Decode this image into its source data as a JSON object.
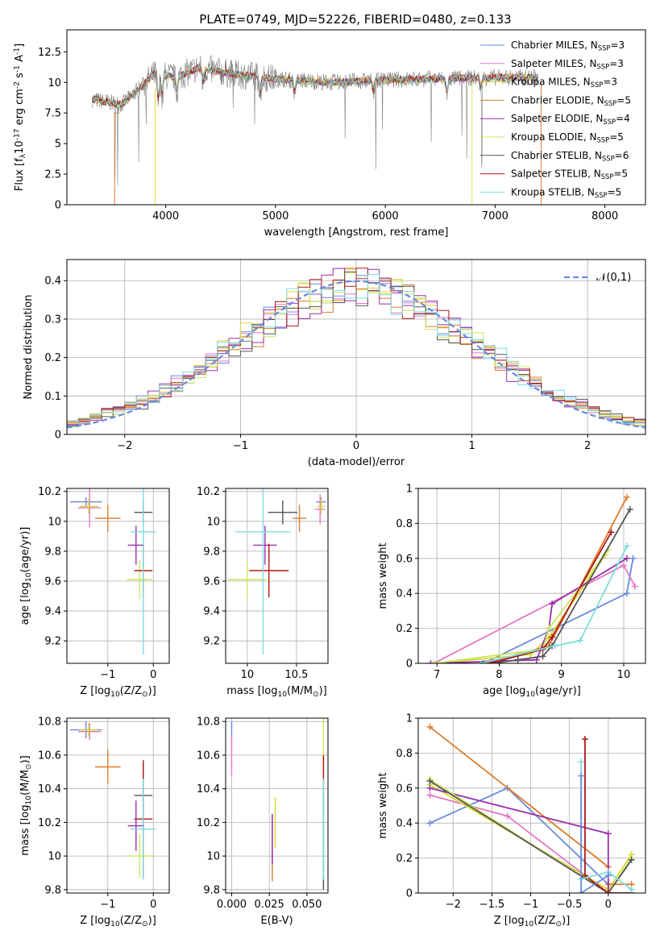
{
  "title": "PLATE=0749, MJD=52226, FIBERID=0480, z=0.133",
  "colors": [
    "#6a8bdc",
    "#e377c2",
    "#d8d830",
    "#e07b2a",
    "#9b2fae",
    "#c8e860",
    "#555555",
    "#b01818",
    "#7fdcdc"
  ],
  "chart_data": [
    {
      "id": "spectrum",
      "type": "line",
      "title": "PLATE=0749, MJD=52226, FIBERID=0480, z=0.133",
      "xlabel": "wavelength [Angstrom, rest frame]",
      "ylabel": "Flux [f$_\\lambda$10$^{-17}$ erg cm$^{-2}$ s$^{-1}$ A$^{-1}$]",
      "xlim": [
        3100,
        8370
      ],
      "ylim": [
        0,
        14.3
      ],
      "xticks": [
        4000,
        5000,
        6000,
        7000,
        8000
      ],
      "yticks": [
        0.0,
        2.5,
        5.0,
        7.5,
        10.0,
        12.5
      ],
      "grid": false,
      "legend_position": "top-right",
      "data_range": [
        3330,
        7390
      ],
      "series": [
        {
          "name": "Chabrier MILES, N$_{SSP}$=3"
        },
        {
          "name": "Salpeter MILES, N$_{SSP}$=3"
        },
        {
          "name": "Kroupa MILES, N$_{SSP}$=3"
        },
        {
          "name": "Chabrier ELODIE, N$_{SSP}$=5"
        },
        {
          "name": "Salpeter ELODIE, N$_{SSP}$=4"
        },
        {
          "name": "Kroupa ELODIE, N$_{SSP}$=5"
        },
        {
          "name": "Chabrier STELIB, N$_{SSP}$=6"
        },
        {
          "name": "Salpeter STELIB, N$_{SSP}$=5"
        },
        {
          "name": "Kroupa STELIB, N$_{SSP}$=5"
        }
      ],
      "continuum": {
        "x": [
          3330,
          3600,
          3700,
          3900,
          4100,
          4300,
          4600,
          5000,
          5500,
          6000,
          6500,
          7000,
          7400
        ],
        "y": [
          8.6,
          8.2,
          9.0,
          10.7,
          10.4,
          11.2,
          10.7,
          10.3,
          10.0,
          10.2,
          10.3,
          10.4,
          10.4
        ]
      }
    },
    {
      "id": "residual-histogram",
      "type": "line",
      "xlabel": "(data-model)/error",
      "ylabel": "Normed distribution",
      "xlim": [
        -2.5,
        2.5
      ],
      "ylim": [
        0,
        0.455
      ],
      "xticks": [
        -2,
        -1,
        0,
        1,
        2
      ],
      "yticks": [
        0.0,
        0.1,
        0.2,
        0.3,
        0.4
      ],
      "grid": true,
      "legend_position": "top-right",
      "legend": "$\\mathcal{N}(0,1)$",
      "gaussian": {
        "mu": 0,
        "sigma": 1
      },
      "bin_width": 0.1,
      "base": [
        0.025,
        0.035,
        0.045,
        0.055,
        0.065,
        0.075,
        0.085,
        0.1,
        0.115,
        0.135,
        0.15,
        0.17,
        0.19,
        0.21,
        0.23,
        0.25,
        0.27,
        0.29,
        0.31,
        0.33,
        0.35,
        0.36,
        0.37,
        0.38,
        0.39,
        0.39,
        0.38,
        0.37,
        0.36,
        0.35,
        0.33,
        0.31,
        0.29,
        0.27,
        0.25,
        0.23,
        0.21,
        0.19,
        0.17,
        0.15,
        0.135,
        0.115,
        0.1,
        0.085,
        0.075,
        0.065,
        0.055,
        0.045,
        0.035,
        0.03
      ]
    },
    {
      "id": "age-vs-metallicity",
      "type": "scatter",
      "xlabel": "Z [log$_{10}$(Z/Z$_\\odot$)]",
      "ylabel": "age  [log$_{10}$(age/yr)]",
      "xlim": [
        -1.9,
        0.35
      ],
      "ylim": [
        9.05,
        10.22
      ],
      "xticks": [
        -1,
        0
      ],
      "yticks": [
        9.2,
        9.4,
        9.6,
        9.8,
        10.0,
        10.2
      ],
      "grid": true,
      "points": [
        {
          "x": -1.48,
          "y": 10.13,
          "xerr": 0.35,
          "yerr": 0.03
        },
        {
          "x": -1.4,
          "y": 10.09,
          "xerr": 0.25,
          "yerr": 0.13
        },
        {
          "x": -1.42,
          "y": 10.1,
          "xerr": 0.2,
          "yerr": 0.05
        },
        {
          "x": -1.0,
          "y": 10.02,
          "xerr": 0.28,
          "yerr": 0.09
        },
        {
          "x": -0.38,
          "y": 9.84,
          "xerr": 0.18,
          "yerr": 0.13
        },
        {
          "x": -0.3,
          "y": 9.61,
          "xerr": 0.28,
          "yerr": 0.13
        },
        {
          "x": -0.22,
          "y": 10.06,
          "xerr": 0.2,
          "yerr": 0.08
        },
        {
          "x": -0.22,
          "y": 9.67,
          "xerr": 0.2,
          "yerr": 0.18
        },
        {
          "x": -0.22,
          "y": 9.93,
          "xerr": 0.28,
          "yerr": 0.82
        }
      ]
    },
    {
      "id": "age-vs-mass",
      "type": "scatter",
      "xlabel": "mass [log$_{10}$(M/M$_\\odot$)]",
      "ylabel": "",
      "xlim": [
        9.78,
        10.82
      ],
      "ylim": [
        9.05,
        10.22
      ],
      "xticks": [
        10.0,
        10.5
      ],
      "yticks": [
        9.2,
        9.4,
        9.6,
        9.8,
        10.0,
        10.2
      ],
      "grid": true,
      "points": [
        {
          "x": 10.75,
          "y": 10.13,
          "xerr": 0.05,
          "yerr": 0.03
        },
        {
          "x": 10.74,
          "y": 10.08,
          "xerr": 0.05,
          "yerr": 0.1
        },
        {
          "x": 10.75,
          "y": 10.1,
          "xerr": 0.04,
          "yerr": 0.05
        },
        {
          "x": 10.53,
          "y": 10.02,
          "xerr": 0.07,
          "yerr": 0.09
        },
        {
          "x": 10.18,
          "y": 9.84,
          "xerr": 0.12,
          "yerr": 0.13
        },
        {
          "x": 10.0,
          "y": 9.61,
          "xerr": 0.2,
          "yerr": 0.13
        },
        {
          "x": 10.36,
          "y": 10.06,
          "xerr": 0.15,
          "yerr": 0.08
        },
        {
          "x": 10.22,
          "y": 9.67,
          "xerr": 0.2,
          "yerr": 0.18
        },
        {
          "x": 10.16,
          "y": 9.93,
          "xerr": 0.28,
          "yerr": 0.82
        }
      ]
    },
    {
      "id": "mass-weight-vs-age",
      "type": "line",
      "xlabel": "age  [log$_{10}$(age/yr)]",
      "ylabel": "mass weight",
      "xlim": [
        6.7,
        10.35
      ],
      "ylim": [
        0,
        1.0
      ],
      "xticks": [
        7,
        8,
        9,
        10
      ],
      "yticks": [
        0.0,
        0.2,
        0.4,
        0.6,
        0.8,
        1.0
      ],
      "grid": true,
      "series": [
        {
          "x": [
            7.75,
            10.05,
            10.15
          ],
          "y": [
            0.0,
            0.4,
            0.6
          ]
        },
        {
          "x": [
            6.95,
            10.0,
            10.18
          ],
          "y": [
            0.0,
            0.56,
            0.44
          ]
        },
        {
          "x": [
            6.95,
            8.5,
            8.8,
            9.7
          ],
          "y": [
            0.0,
            0.05,
            0.15,
            0.62
          ]
        },
        {
          "x": [
            7.8,
            8.3,
            8.8,
            10.05
          ],
          "y": [
            0.0,
            0.05,
            0.1,
            0.95
          ]
        },
        {
          "x": [
            6.9,
            8.6,
            8.8,
            8.85,
            10.05
          ],
          "y": [
            0.0,
            0.02,
            0.2,
            0.34,
            0.6
          ]
        },
        {
          "x": [
            6.95,
            8.7,
            8.8,
            9.75
          ],
          "y": [
            0.0,
            0.08,
            0.2,
            0.65
          ]
        },
        {
          "x": [
            7.9,
            8.3,
            8.7,
            8.85,
            10.1
          ],
          "y": [
            0.0,
            0.02,
            0.04,
            0.1,
            0.88
          ]
        },
        {
          "x": [
            7.85,
            8.7,
            8.85,
            9.8
          ],
          "y": [
            0.0,
            0.08,
            0.15,
            0.75
          ]
        },
        {
          "x": [
            7.7,
            8.9,
            9.3,
            10.05
          ],
          "y": [
            0.0,
            0.1,
            0.13,
            0.67
          ]
        }
      ]
    },
    {
      "id": "mass-vs-metallicity",
      "type": "scatter",
      "xlabel": "Z [log$_{10}$(Z/Z$_\\odot$)]",
      "ylabel": "mass [log$_{10}$(M/M$_\\odot$)]",
      "xlim": [
        -1.9,
        0.35
      ],
      "ylim": [
        9.78,
        10.82
      ],
      "xticks": [
        -1,
        0
      ],
      "yticks": [
        9.8,
        10.0,
        10.2,
        10.4,
        10.6,
        10.8
      ],
      "grid": true,
      "points": [
        {
          "x": -1.48,
          "y": 10.75,
          "xerr": 0.35,
          "yerr": 0.05
        },
        {
          "x": -1.4,
          "y": 10.74,
          "xerr": 0.25,
          "yerr": 0.05
        },
        {
          "x": -1.42,
          "y": 10.75,
          "xerr": 0.2,
          "yerr": 0.04
        },
        {
          "x": -1.0,
          "y": 10.53,
          "xerr": 0.28,
          "yerr": 0.1
        },
        {
          "x": -0.38,
          "y": 10.18,
          "xerr": 0.18,
          "yerr": 0.15
        },
        {
          "x": -0.3,
          "y": 10.0,
          "xerr": 0.28,
          "yerr": 0.13
        },
        {
          "x": -0.22,
          "y": 10.36,
          "xerr": 0.2,
          "yerr": 0.2
        },
        {
          "x": -0.22,
          "y": 10.22,
          "xerr": 0.2,
          "yerr": 0.35
        },
        {
          "x": -0.22,
          "y": 10.16,
          "xerr": 0.28,
          "yerr": 0.3
        }
      ]
    },
    {
      "id": "mass-vs-extinction",
      "type": "scatter",
      "xlabel": "E(B-V)",
      "ylabel": "",
      "xlim": [
        -0.004,
        0.064
      ],
      "ylim": [
        9.78,
        10.82
      ],
      "xticks": [
        0.0,
        0.025,
        0.05
      ],
      "xticklabels": [
        "0.000",
        "0.025",
        "0.050"
      ],
      "yticks": [
        9.8,
        10.0,
        10.2,
        10.4,
        10.6,
        10.8
      ],
      "grid": true,
      "points": [
        {
          "x": 0.0,
          "y": 10.75,
          "yerr": 0.05
        },
        {
          "x": 0.0,
          "y": 10.6,
          "yerr": 0.12
        },
        {
          "x": 0.029,
          "y": 10.2,
          "yerr": 0.15
        },
        {
          "x": 0.027,
          "y": 10.05,
          "yerr": 0.2
        },
        {
          "x": 0.027,
          "y": 10.1,
          "yerr": 0.15
        },
        {
          "x": 0.061,
          "y": 10.35,
          "yerr": 0.5
        },
        {
          "x": 0.061,
          "y": 10.1,
          "yerr": 0.3
        },
        {
          "x": 0.061,
          "y": 10.5,
          "yerr": 0.1
        },
        {
          "x": 0.061,
          "y": 10.16,
          "yerr": 0.3
        }
      ]
    },
    {
      "id": "mass-weight-vs-metallicity",
      "type": "line",
      "xlabel": "Z [log$_{10}$(Z/Z$_\\odot$)]",
      "ylabel": "mass weight",
      "xlim": [
        -2.45,
        0.48
      ],
      "ylim": [
        0,
        1.0
      ],
      "xticks": [
        -2.0,
        -1.5,
        -1.0,
        -0.5,
        0.0
      ],
      "yticks": [
        0.0,
        0.2,
        0.4,
        0.6,
        0.8,
        1.0
      ],
      "grid": true,
      "series": [
        {
          "x": [
            -2.3,
            -1.3,
            0.0,
            0.0
          ],
          "y": [
            0.4,
            0.6,
            0.05,
            0.0
          ]
        },
        {
          "x": [
            -2.3,
            -1.3,
            0.0,
            0.3
          ],
          "y": [
            0.56,
            0.44,
            0.0,
            0.0
          ]
        },
        {
          "x": [
            -2.3,
            0.0,
            0.3
          ],
          "y": [
            0.62,
            0.02,
            0.22
          ]
        },
        {
          "x": [
            -2.3,
            0.0,
            0.0,
            0.3
          ],
          "y": [
            0.95,
            0.15,
            0.05,
            0.05
          ]
        },
        {
          "x": [
            -2.3,
            0.0,
            0.0
          ],
          "y": [
            0.6,
            0.34,
            0.0
          ]
        },
        {
          "x": [
            -2.3,
            0.0,
            0.3
          ],
          "y": [
            0.65,
            0.0,
            0.2
          ]
        },
        {
          "x": [
            -2.3,
            0.0,
            0.3
          ],
          "y": [
            0.64,
            0.0,
            0.19
          ]
        },
        {
          "x": [
            -0.3,
            -0.3,
            0.0,
            0.3
          ],
          "y": [
            0.88,
            0.1,
            0.0,
            0.0
          ]
        },
        {
          "x": [
            -0.35,
            -0.35,
            0.0,
            0.3
          ],
          "y": [
            0.75,
            0.08,
            0.12,
            0.02
          ]
        },
        {
          "x": [
            -0.35,
            -0.35,
            0.0
          ],
          "y": [
            0.67,
            0.0,
            0.1
          ]
        }
      ]
    }
  ]
}
